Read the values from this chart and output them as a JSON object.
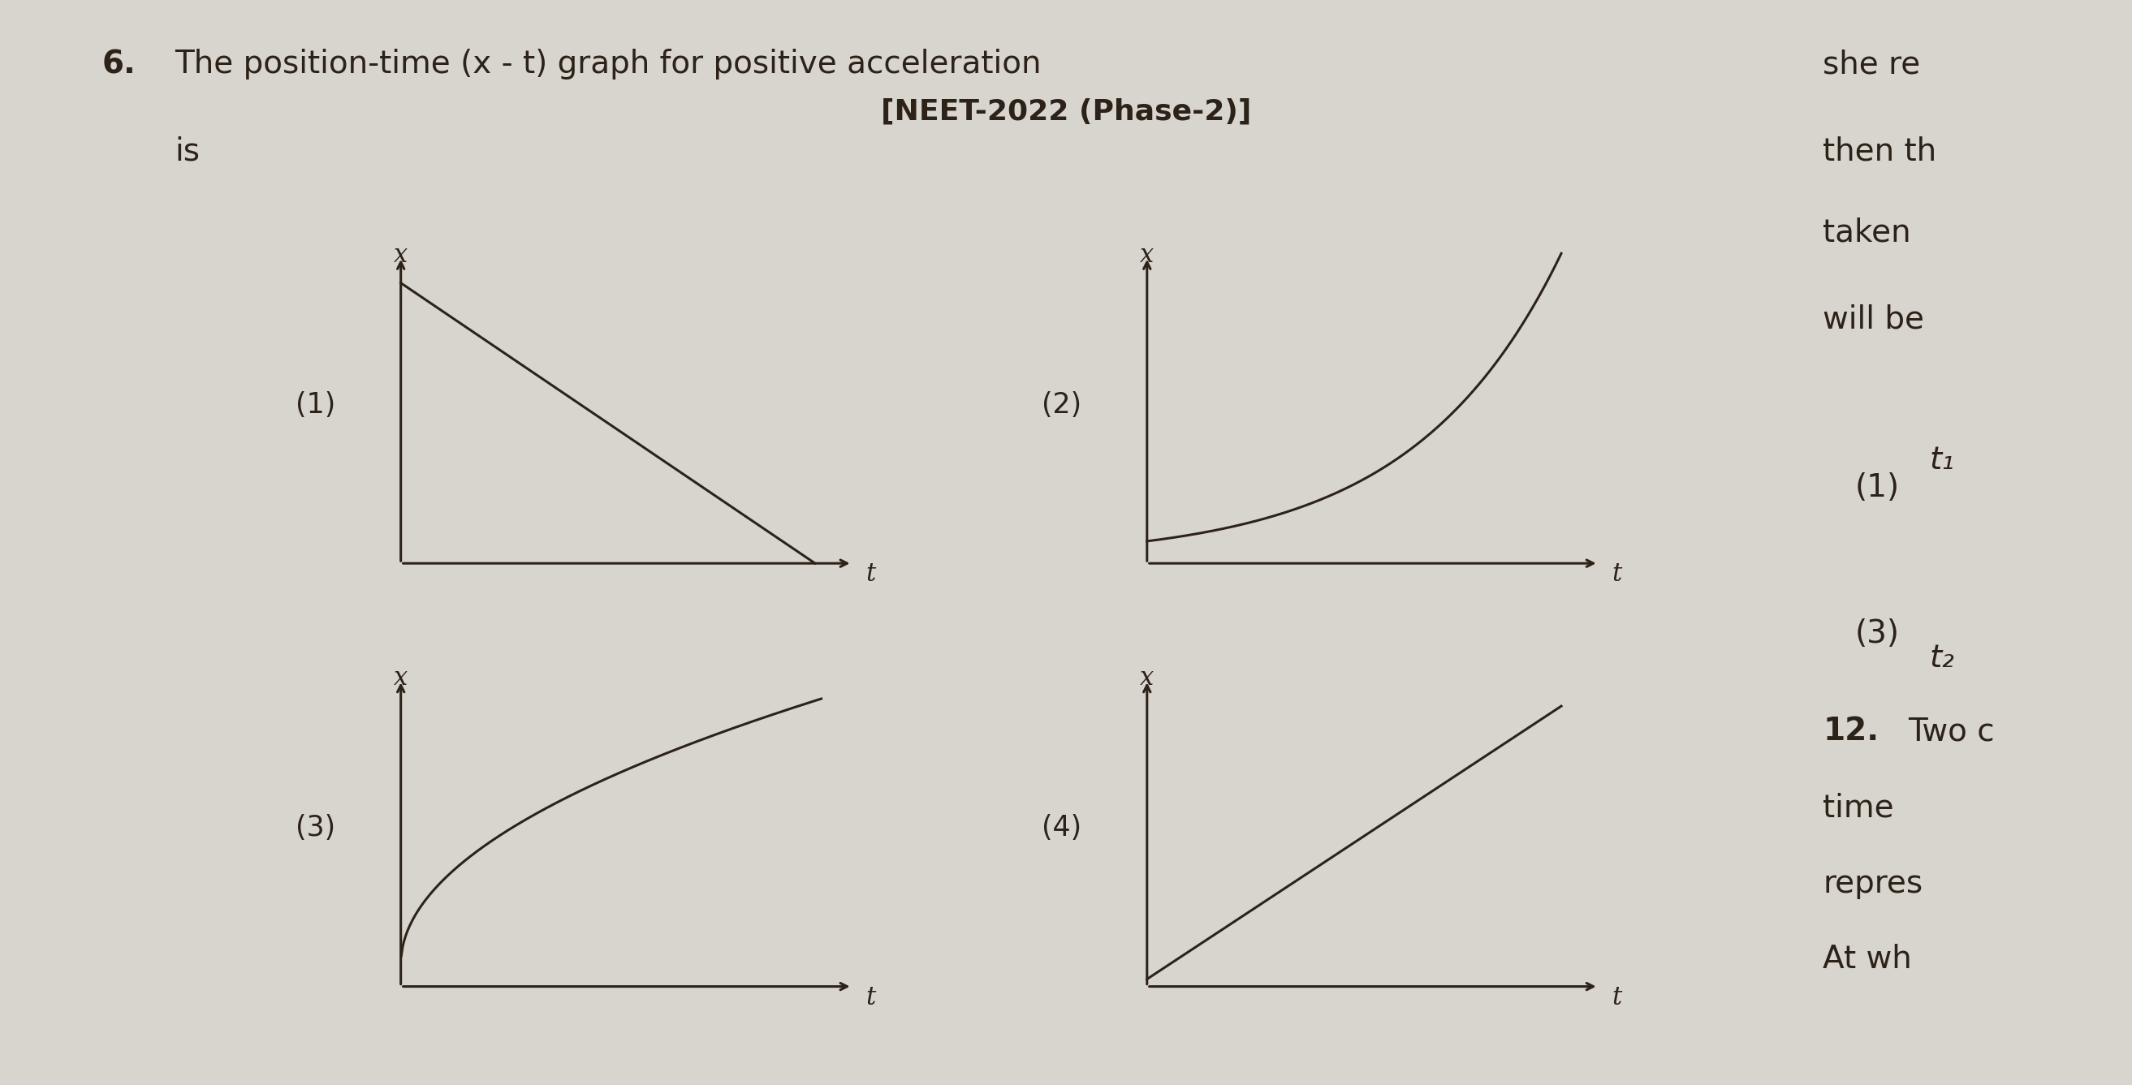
{
  "bg_color": "#d8d5cf",
  "text_color": "#2c2218",
  "question_number": "6.",
  "question_text": "The position-time (x - t) graph for positive acceleration",
  "question_text2": "is",
  "neet_tag": "[NEET-2022 (Phase-2)]",
  "graph_labels": [
    "(1)",
    "(2)",
    "(3)",
    "(4)"
  ],
  "axis_label_x": "x",
  "axis_label_t": "t",
  "line_color": "#2c2218",
  "line_width": 2.2,
  "font_size_question": 28,
  "font_size_neet": 26,
  "font_size_label": 25,
  "font_size_axis": 22,
  "right_text_1": "she re",
  "right_text_2": "then th",
  "right_text_3": "taken",
  "right_text_4": "will be",
  "right_text_5": "t₁",
  "right_text_6": "(1)",
  "right_text_7": "(3)",
  "right_text_8": "t₂",
  "right_text_9": "12.",
  "right_text_10": "Two c",
  "right_text_11": "time",
  "right_text_12": "repres",
  "right_text_13": "At wh"
}
